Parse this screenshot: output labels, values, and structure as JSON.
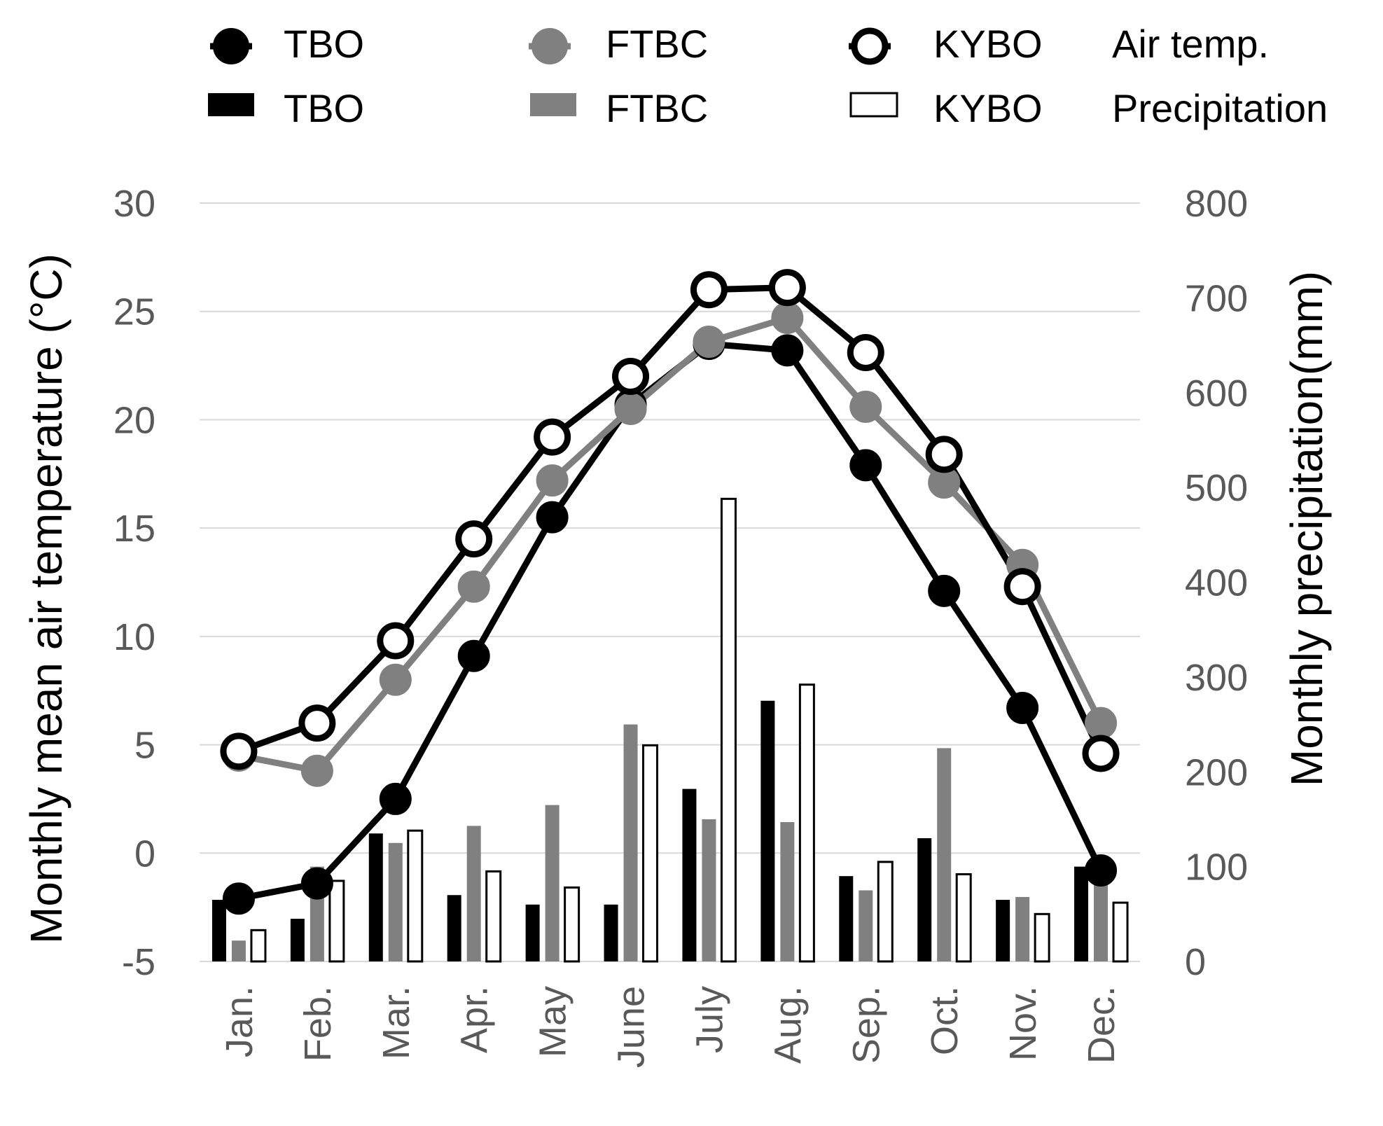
{
  "chart_data": {
    "type": "bar",
    "categories": [
      "Jan.",
      "Feb.",
      "Mar.",
      "Apr.",
      "May",
      "June",
      "July",
      "Aug.",
      "Sep.",
      "Oct.",
      "Nov.",
      "Dec."
    ],
    "ylabel": "Monthly mean air temperature (°C)",
    "ylabel_right": "Monthly precipitation(mm)",
    "ylim": [
      -5,
      30
    ],
    "ylim_right": [
      0,
      800
    ],
    "yticks": [
      -5,
      0,
      5,
      10,
      15,
      20,
      25,
      30
    ],
    "yticks_right": [
      0,
      100,
      200,
      300,
      400,
      500,
      600,
      700,
      800
    ],
    "grid": true,
    "legend": {
      "placement": "top",
      "temp_group_label": "Air temp.",
      "precip_group_label": "Precipitation"
    },
    "temperature_series": [
      {
        "name": "TBO",
        "color": "#000000",
        "marker": "filled",
        "values": [
          -2.1,
          -1.4,
          2.5,
          9.1,
          15.5,
          20.7,
          23.5,
          23.2,
          17.9,
          12.1,
          6.7,
          -0.8
        ]
      },
      {
        "name": "FTBC",
        "color": "#808080",
        "marker": "filled",
        "values": [
          4.5,
          3.8,
          8.0,
          12.3,
          17.2,
          20.5,
          23.6,
          24.7,
          20.6,
          17.1,
          13.3,
          6.0
        ]
      },
      {
        "name": "KYBO",
        "color": "#000000",
        "marker": "open",
        "values": [
          4.7,
          6.0,
          9.8,
          14.5,
          19.2,
          22.0,
          26.0,
          26.1,
          23.1,
          18.4,
          12.3,
          4.6
        ]
      }
    ],
    "precipitation_series": [
      {
        "name": "TBO",
        "color": "#000000",
        "fill": "solid",
        "values": [
          65,
          45,
          135,
          70,
          60,
          60,
          182,
          275,
          90,
          130,
          65,
          100
        ]
      },
      {
        "name": "FTBC",
        "color": "#808080",
        "fill": "solid",
        "values": [
          22,
          100,
          125,
          143,
          165,
          250,
          150,
          147,
          75,
          225,
          68,
          100
        ]
      },
      {
        "name": "KYBO",
        "color": "#000000",
        "fill": "open",
        "values": [
          33,
          85,
          138,
          95,
          78,
          228,
          488,
          292,
          105,
          92,
          50,
          62
        ]
      }
    ]
  }
}
